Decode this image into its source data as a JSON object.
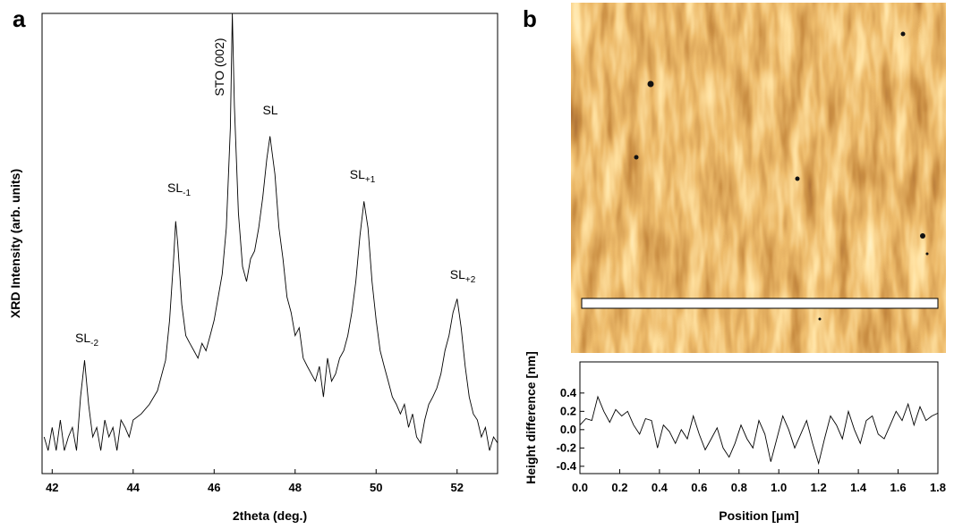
{
  "chart_data": [
    {
      "type": "line",
      "panel": "a",
      "x_label": "2theta (deg.)",
      "y_label": "XRD Intensity (arb. units)",
      "log_scale": true,
      "color": "#000000",
      "xlim": [
        41.75,
        53
      ],
      "ylim": [
        1,
        1000000
      ],
      "xticks": [
        42,
        44,
        46,
        48,
        50,
        52
      ],
      "x": [
        41.8,
        41.9,
        42.0,
        42.1,
        42.2,
        42.3,
        42.4,
        42.5,
        42.6,
        42.7,
        42.8,
        42.9,
        43.0,
        43.1,
        43.2,
        43.3,
        43.4,
        43.5,
        43.6,
        43.7,
        43.8,
        43.9,
        44.0,
        44.2,
        44.4,
        44.6,
        44.8,
        44.9,
        45.0,
        45.05,
        45.1,
        45.2,
        45.3,
        45.4,
        45.5,
        45.6,
        45.7,
        45.8,
        45.9,
        46.0,
        46.1,
        46.2,
        46.3,
        46.4,
        46.45,
        46.5,
        46.6,
        46.7,
        46.8,
        46.9,
        47.0,
        47.1,
        47.2,
        47.3,
        47.38,
        47.5,
        47.6,
        47.7,
        47.8,
        47.9,
        48.0,
        48.1,
        48.2,
        48.3,
        48.4,
        48.5,
        48.6,
        48.7,
        48.8,
        48.9,
        49.0,
        49.1,
        49.2,
        49.3,
        49.4,
        49.5,
        49.6,
        49.7,
        49.8,
        49.9,
        50.0,
        50.1,
        50.2,
        50.3,
        50.4,
        50.5,
        50.6,
        50.7,
        50.8,
        50.9,
        51.0,
        51.1,
        51.2,
        51.3,
        51.4,
        51.5,
        51.6,
        51.7,
        51.8,
        51.9,
        52.0,
        52.1,
        52.2,
        52.3,
        52.4,
        52.5,
        52.6,
        52.7,
        52.8,
        52.9,
        53.0
      ],
      "values": [
        3,
        2,
        4,
        2,
        5,
        2,
        3,
        4,
        2,
        10,
        30,
        8,
        3,
        4,
        2,
        5,
        3,
        4,
        2,
        5,
        4,
        3,
        5,
        6,
        8,
        12,
        30,
        100,
        630,
        1950,
        1000,
        160,
        63,
        50,
        40,
        32,
        50,
        40,
        63,
        100,
        200,
        400,
        1600,
        32000,
        1000000,
        63000,
        2500,
        500,
        320,
        630,
        800,
        1600,
        4000,
        12600,
        25000,
        8000,
        1600,
        630,
        200,
        126,
        63,
        80,
        32,
        25,
        20,
        16,
        25,
        10,
        32,
        16,
        20,
        32,
        40,
        63,
        126,
        320,
        1260,
        3550,
        1600,
        320,
        100,
        40,
        25,
        16,
        10,
        8,
        6,
        8,
        4,
        6,
        3,
        2.5,
        5,
        8,
        10,
        13,
        20,
        40,
        63,
        126,
        190,
        80,
        25,
        10,
        6,
        5,
        3,
        4,
        2,
        3,
        2.5
      ],
      "annotations": [
        {
          "text": "SL",
          "sub": "-2"
        },
        {
          "text": "SL",
          "sub": "-1"
        },
        {
          "text": "STO (002)"
        },
        {
          "text": "SL"
        },
        {
          "text": "SL",
          "sub": "+1"
        },
        {
          "text": "SL",
          "sub": "+2"
        }
      ]
    },
    {
      "type": "line",
      "panel": "b",
      "x_label": "Position [μm]",
      "y_label": "Height difference [nm]",
      "color": "#000000",
      "xlim": [
        0,
        1.8
      ],
      "ylim": [
        -0.48,
        0.74
      ],
      "xticks": [
        {
          "value": 0,
          "label": "0.0"
        },
        0.2,
        0.4,
        0.6,
        0.8,
        {
          "value": 1,
          "label": "1.0"
        },
        1.2,
        1.4,
        1.6,
        1.8
      ],
      "yticks": [
        -0.4,
        -0.2,
        {
          "value": 0,
          "label": "0.0"
        },
        0.2,
        0.4
      ],
      "x": [
        0,
        0.03,
        0.06,
        0.09,
        0.12,
        0.15,
        0.18,
        0.21,
        0.24,
        0.27,
        0.3,
        0.33,
        0.36,
        0.39,
        0.42,
        0.45,
        0.48,
        0.51,
        0.54,
        0.57,
        0.6,
        0.63,
        0.66,
        0.69,
        0.72,
        0.75,
        0.78,
        0.81,
        0.84,
        0.87,
        0.9,
        0.93,
        0.96,
        0.99,
        1.02,
        1.05,
        1.08,
        1.11,
        1.14,
        1.17,
        1.2,
        1.23,
        1.26,
        1.29,
        1.32,
        1.35,
        1.38,
        1.41,
        1.44,
        1.47,
        1.5,
        1.53,
        1.56,
        1.59,
        1.62,
        1.65,
        1.68,
        1.71,
        1.74,
        1.77,
        1.8
      ],
      "values": [
        0.05,
        0.12,
        0.1,
        0.36,
        0.2,
        0.08,
        0.22,
        0.15,
        0.2,
        0.05,
        -0.05,
        0.12,
        0.1,
        -0.2,
        0.05,
        -0.02,
        -0.15,
        0.0,
        -0.1,
        0.15,
        -0.05,
        -0.22,
        -0.1,
        0.02,
        -0.2,
        -0.3,
        -0.15,
        0.05,
        -0.1,
        -0.2,
        0.1,
        -0.05,
        -0.35,
        -0.1,
        0.15,
        0.0,
        -0.2,
        -0.05,
        0.1,
        -0.15,
        -0.37,
        -0.1,
        0.15,
        0.05,
        -0.1,
        0.2,
        0.0,
        -0.15,
        0.1,
        0.15,
        -0.05,
        -0.1,
        0.05,
        0.2,
        0.1,
        0.28,
        0.05,
        0.25,
        0.1,
        0.15,
        0.18
      ]
    }
  ]
}
